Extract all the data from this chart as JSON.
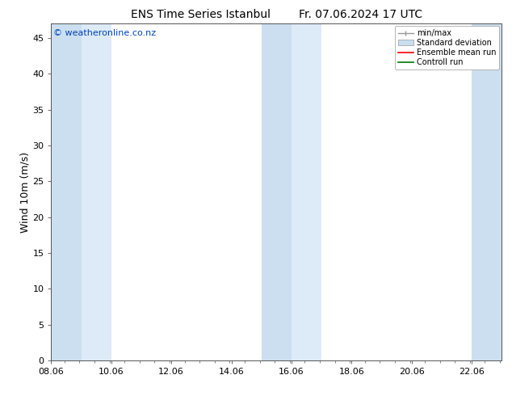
{
  "title_left": "ENS Time Series Istanbul",
  "title_right": "Fr. 07.06.2024 17 UTC",
  "ylabel": "Wind 10m (m/s)",
  "watermark": "© weatheronline.co.nz",
  "watermark_color": "#0044bb",
  "xlim_start": 8.06,
  "xlim_end": 23.06,
  "ylim_min": 0,
  "ylim_max": 47,
  "yticks": [
    0,
    5,
    10,
    15,
    20,
    25,
    30,
    35,
    40,
    45
  ],
  "xtick_labels": [
    "08.06",
    "10.06",
    "12.06",
    "14.06",
    "16.06",
    "18.06",
    "20.06",
    "22.06"
  ],
  "xtick_positions": [
    8.06,
    10.06,
    12.06,
    14.06,
    16.06,
    18.06,
    20.06,
    22.06
  ],
  "background_color": "#ffffff",
  "plot_bg_color": "#ffffff",
  "shaded_bands": [
    {
      "x_start": 8.06,
      "x_end": 9.06,
      "color": "#ccdff0"
    },
    {
      "x_start": 9.06,
      "x_end": 10.06,
      "color": "#ddeaf8"
    },
    {
      "x_start": 15.06,
      "x_end": 16.06,
      "color": "#ccdff0"
    },
    {
      "x_start": 16.06,
      "x_end": 17.06,
      "color": "#ddeaf8"
    },
    {
      "x_start": 22.06,
      "x_end": 23.06,
      "color": "#ccdff0"
    }
  ],
  "legend_items": [
    {
      "label": "min/max",
      "color": "#999999",
      "type": "errorbar"
    },
    {
      "label": "Standard deviation",
      "color": "#c8dff0",
      "type": "fillbetween"
    },
    {
      "label": "Ensemble mean run",
      "color": "#ff0000",
      "type": "line"
    },
    {
      "label": "Controll run",
      "color": "#007700",
      "type": "line"
    }
  ],
  "title_fontsize": 10,
  "tick_fontsize": 8,
  "ylabel_fontsize": 9,
  "watermark_fontsize": 8,
  "legend_fontsize": 7,
  "spine_color": "#555555"
}
